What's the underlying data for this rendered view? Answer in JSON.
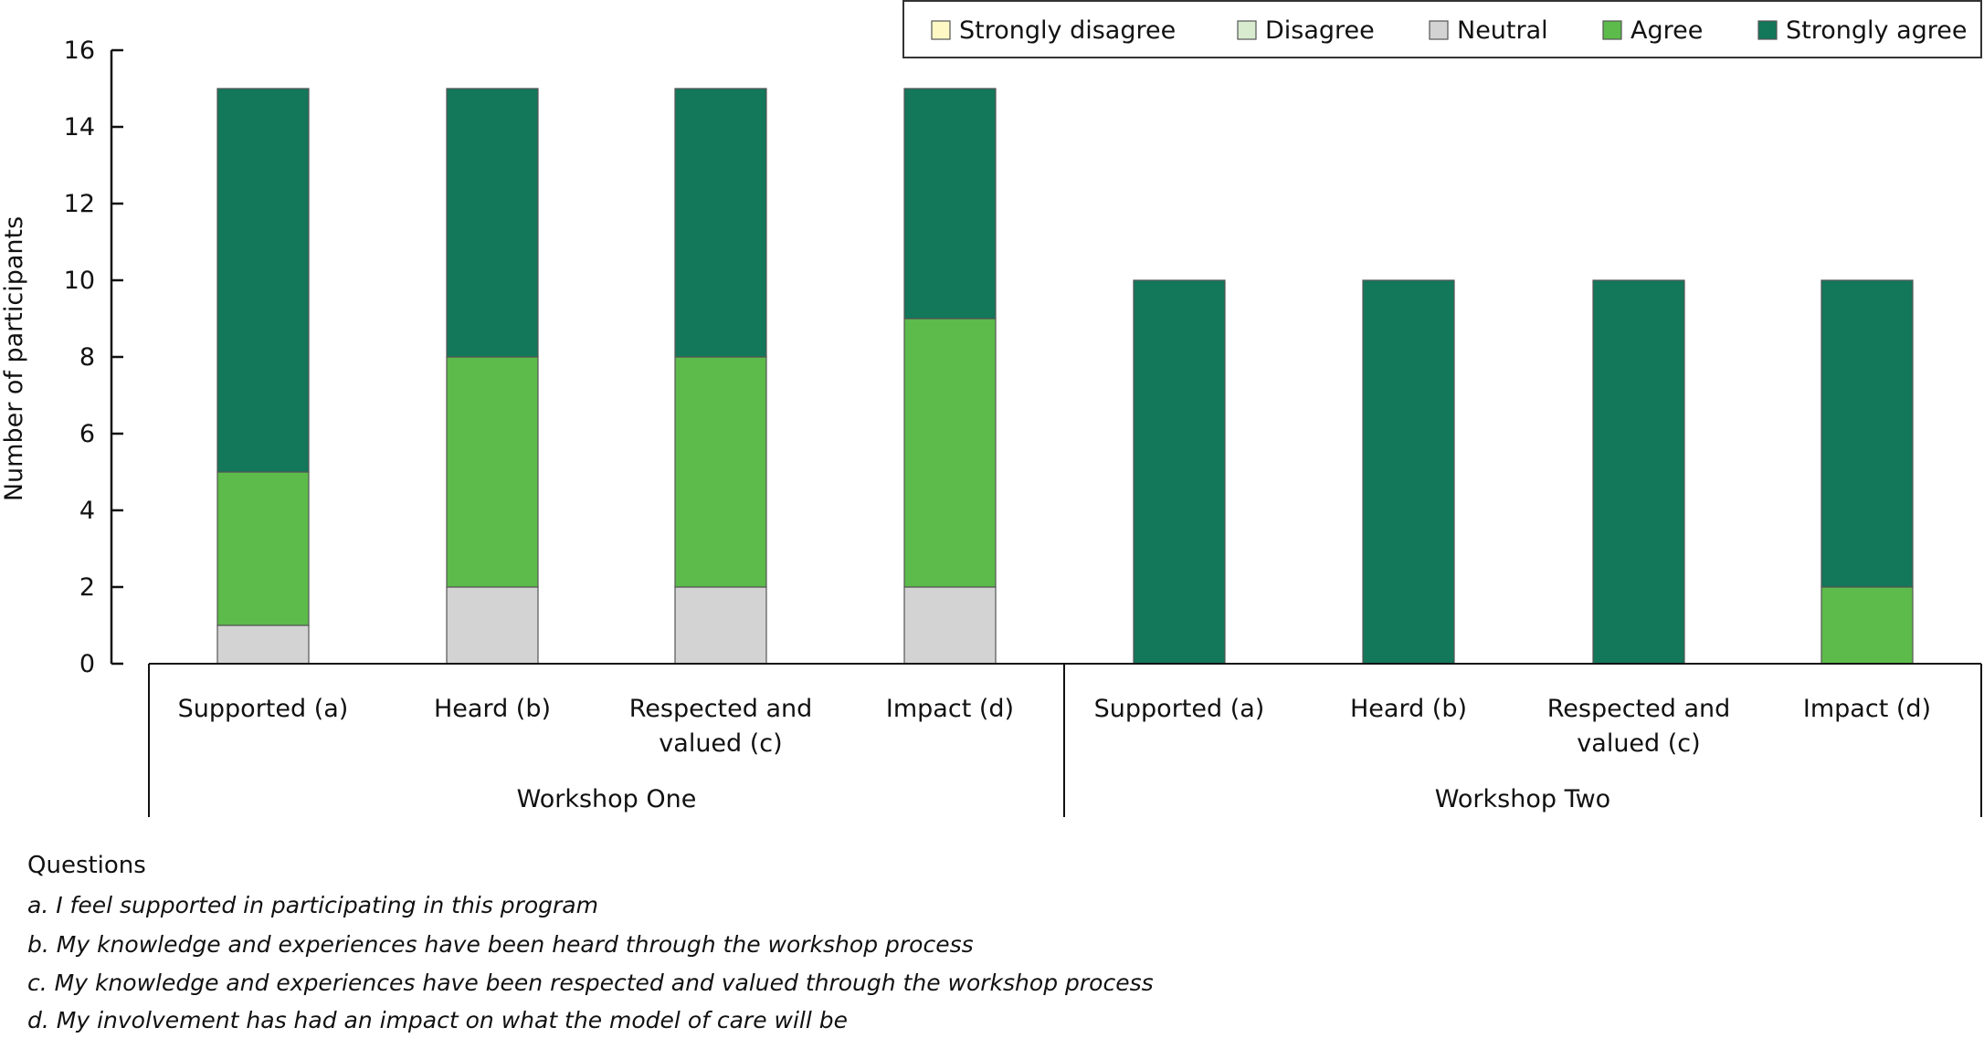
{
  "chart_data": {
    "type": "bar",
    "stacked": true,
    "title": "",
    "xlabel": "",
    "ylabel": "Number of participants",
    "ylim": [
      0,
      16
    ],
    "yticks": [
      0,
      2,
      4,
      6,
      8,
      10,
      12,
      14,
      16
    ],
    "grid": false,
    "legend_position": "top-right",
    "groups": [
      {
        "label": "Workshop One",
        "categories": [
          [
            "Supported (a)"
          ],
          [
            "Heard (b)"
          ],
          [
            "Respected and",
            "valued (c)"
          ],
          [
            "Impact (d)"
          ]
        ]
      },
      {
        "label": "Workshop Two",
        "categories": [
          [
            "Supported (a)"
          ],
          [
            "Heard (b)"
          ],
          [
            "Respected and",
            "valued (c)"
          ],
          [
            "Impact (d)"
          ]
        ]
      }
    ],
    "series": [
      {
        "name": "Strongly disagree",
        "color": "#fdf8c4",
        "values": [
          0,
          0,
          0,
          0,
          0,
          0,
          0,
          0
        ]
      },
      {
        "name": "Disagree",
        "color": "#d8ebcf",
        "values": [
          0,
          0,
          0,
          0,
          0,
          0,
          0,
          0
        ]
      },
      {
        "name": "Neutral",
        "color": "#d3d3d3",
        "values": [
          1,
          2,
          2,
          2,
          0,
          0,
          0,
          0
        ]
      },
      {
        "name": "Agree",
        "color": "#5cbb4a",
        "values": [
          4,
          6,
          6,
          7,
          0,
          0,
          0,
          2
        ]
      },
      {
        "name": "Strongly agree",
        "color": "#13775a",
        "values": [
          10,
          7,
          7,
          6,
          10,
          10,
          10,
          8
        ]
      }
    ]
  },
  "questions": {
    "heading": "Questions",
    "items": [
      "a. I feel supported in participating in this program",
      "b. My knowledge and experiences have been heard through the workshop process",
      "c. My knowledge and experiences have been respected and valued through the workshop process",
      "d. My involvement has had an impact on what the model of care will be"
    ]
  }
}
